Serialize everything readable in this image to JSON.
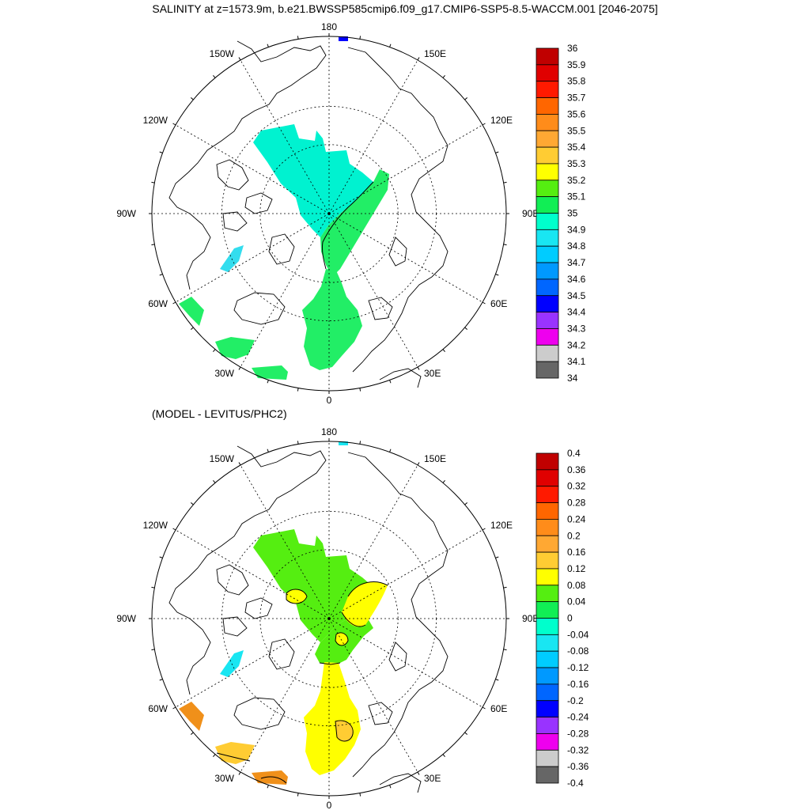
{
  "title": "SALINITY at z=1573.9m, b.e21.BWSSP585cmip6.f09_g17.CMIP6-SSP5-8.5-WACCM.001 [2046-2075]",
  "subtitle": "(MODEL - LEVITUS/PHC2)",
  "lon_labels": {
    "top": "180",
    "bottom": "0",
    "left": "90W",
    "right": "90E",
    "ul1": "150W",
    "ul2": "120W",
    "ur1": "150E",
    "ur2": "120E",
    "ll1": "60W",
    "ll2": "30W",
    "lr1": "60E",
    "lr2": "30E"
  },
  "colorbars": {
    "top": {
      "labels": [
        "36",
        "35.9",
        "35.8",
        "35.7",
        "35.6",
        "35.5",
        "35.4",
        "35.3",
        "35.2",
        "35.1",
        "35",
        "34.9",
        "34.8",
        "34.7",
        "34.6",
        "34.5",
        "34.4",
        "34.3",
        "34.2",
        "34.1",
        "34"
      ],
      "colors": [
        "#c00000",
        "#e00000",
        "#ff1a00",
        "#ff6600",
        "#ff8c1a",
        "#ffa833",
        "#ffcc33",
        "#ffff00",
        "#55ee11",
        "#11ee55",
        "#00ffcc",
        "#19e6f2",
        "#00ccff",
        "#0099ff",
        "#0066ff",
        "#0000ff",
        "#9933ff",
        "#ee00ee",
        "#cccccc",
        "#666666"
      ]
    },
    "bottom": {
      "labels": [
        "0.4",
        "0.36",
        "0.32",
        "0.28",
        "0.24",
        "0.2",
        "0.16",
        "0.12",
        "0.08",
        "0.04",
        "0",
        "-0.04",
        "-0.08",
        "-0.12",
        "-0.16",
        "-0.2",
        "-0.24",
        "-0.28",
        "-0.32",
        "-0.36",
        "-0.4"
      ],
      "colors": [
        "#c00000",
        "#e00000",
        "#ff1a00",
        "#ff6600",
        "#ff8c1a",
        "#ffa833",
        "#ffcc33",
        "#ffff00",
        "#55ee11",
        "#11ee55",
        "#00ffcc",
        "#19e6f2",
        "#00ccff",
        "#0099ff",
        "#0066ff",
        "#0000ff",
        "#9933ff",
        "#ee00ee",
        "#cccccc",
        "#666666"
      ]
    }
  },
  "fill_colors": {
    "cyan_top": "#00f2d0",
    "green_top": "#22ee66",
    "lightblue": "#33ddee",
    "blue_patch": "#0000ff",
    "green_bottom": "#55ee11",
    "yellow_bottom": "#ffff00",
    "orange_bottom": "#f0901a",
    "gold_bottom": "#ffcc33",
    "cyan_bottom": "#19e6f2"
  }
}
